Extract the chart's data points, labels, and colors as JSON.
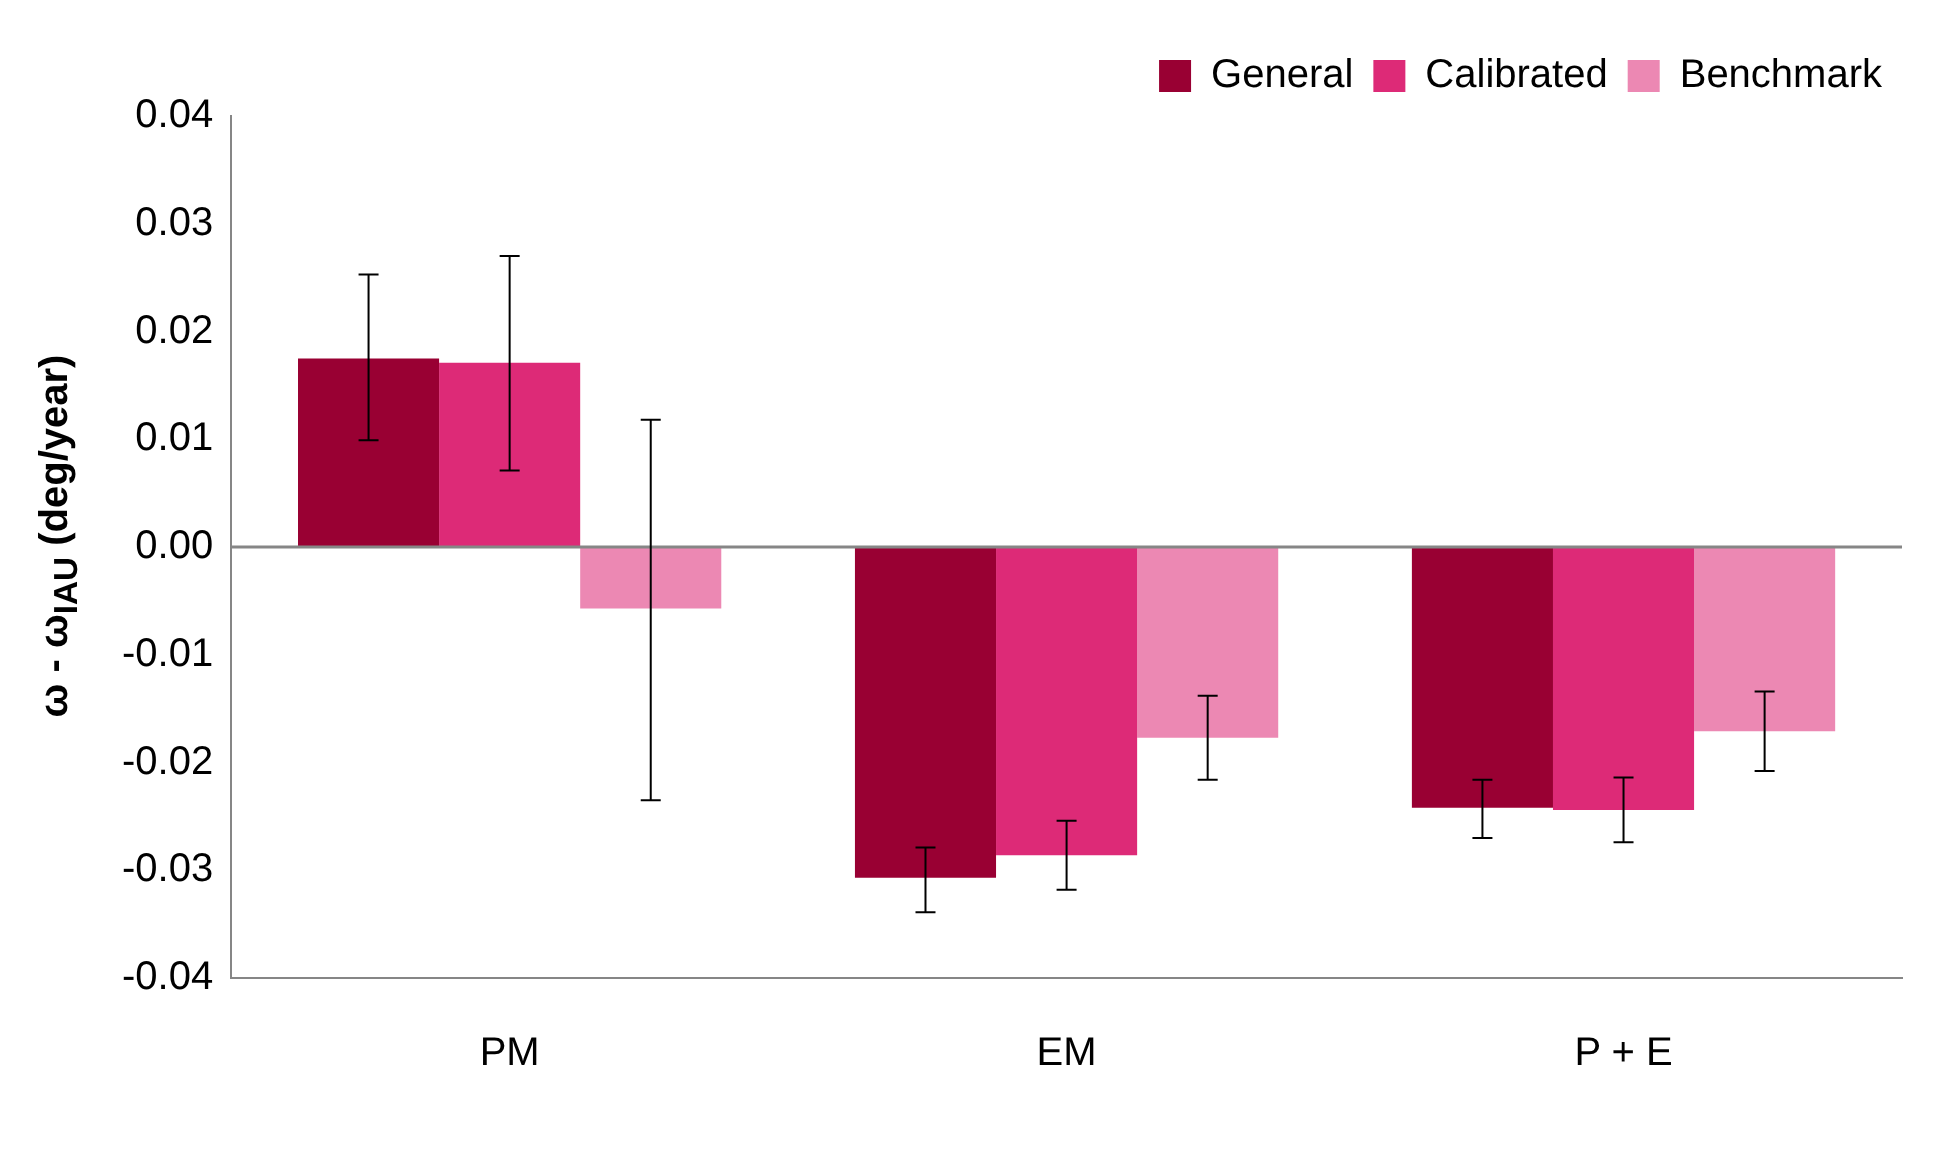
{
  "chart_data": {
    "type": "bar",
    "ylabel": "ω - ω$_{IAU}$ (deg/year)",
    "categories": [
      "PM",
      "EM",
      "P + E"
    ],
    "series": [
      {
        "name": "General",
        "color": "#990033",
        "values": [
          0.0175,
          -0.0307,
          -0.0242
        ],
        "errors": [
          [
            0.0099,
            0.0253
          ],
          [
            -0.0339,
            -0.0279
          ],
          [
            -0.027,
            -0.0216
          ]
        ]
      },
      {
        "name": "Calibrated",
        "color": "#dd2a77",
        "values": [
          0.0171,
          -0.0286,
          -0.0244
        ],
        "errors": [
          [
            0.0071,
            0.027
          ],
          [
            -0.0318,
            -0.0254
          ],
          [
            -0.0274,
            -0.0214
          ]
        ]
      },
      {
        "name": "Benchmark",
        "color": "#ec88b3",
        "values": [
          -0.0057,
          -0.0177,
          -0.0171
        ],
        "errors": [
          [
            -0.0235,
            0.0118
          ],
          [
            -0.0216,
            -0.0138
          ],
          [
            -0.0208,
            -0.0134
          ]
        ]
      }
    ],
    "ylim": [
      -0.04,
      0.04
    ],
    "yticks": [
      {
        "value": -0.04,
        "label": "-0.04"
      },
      {
        "value": -0.03,
        "label": "-0.03"
      },
      {
        "value": -0.02,
        "label": "-0.02"
      },
      {
        "value": -0.01,
        "label": "-0.01"
      },
      {
        "value": 0,
        "label": "0.00"
      },
      {
        "value": 0.01,
        "label": "0.01"
      },
      {
        "value": 0.02,
        "label": "0.02"
      },
      {
        "value": 0.03,
        "label": "0.03"
      },
      {
        "value": 0.04,
        "label": "0.04"
      }
    ],
    "ref_lines": [
      {
        "axis": "y",
        "value": 0,
        "color": "#868686"
      }
    ],
    "grid": false,
    "legend": "top right"
  }
}
